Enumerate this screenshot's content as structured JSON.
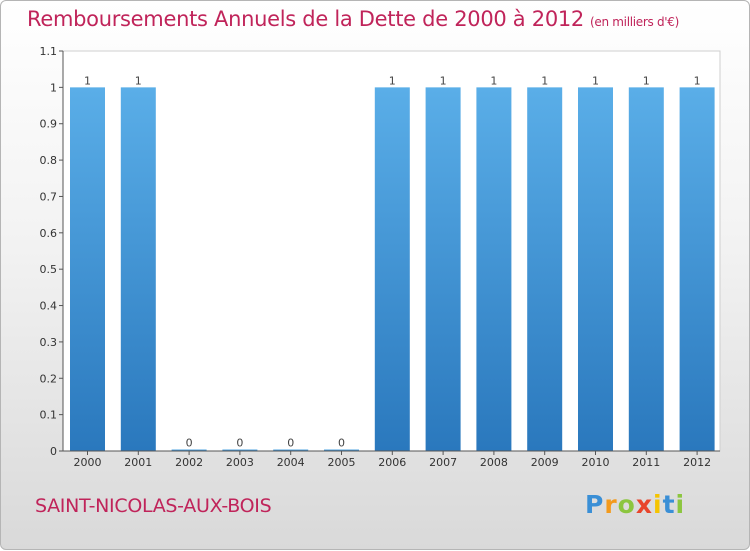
{
  "header": {
    "title": "Remboursements Annuels de la Dette de 2000 à 2012",
    "subtitle": "(en milliers d'€)"
  },
  "footer": {
    "town": "SAINT-NICOLAS-AUX-BOIS",
    "logo": "Proxiti"
  },
  "colors": {
    "title": "#c0245a",
    "bar_top": "#5aaee8",
    "bar_bottom": "#2a78bd",
    "plot_bg": "#ffffff"
  },
  "chart_data": {
    "type": "bar",
    "title": "Remboursements Annuels de la Dette de 2000 à 2012",
    "subtitle": "(en milliers d'€)",
    "categories": [
      "2000",
      "2001",
      "2002",
      "2003",
      "2004",
      "2005",
      "2006",
      "2007",
      "2008",
      "2009",
      "2010",
      "2011",
      "2012"
    ],
    "values": [
      1,
      1,
      0,
      0,
      0,
      0,
      1,
      1,
      1,
      1,
      1,
      1,
      1
    ],
    "data_labels": [
      "1",
      "1",
      "0",
      "0",
      "0",
      "0",
      "1",
      "1",
      "1",
      "1",
      "1",
      "1",
      "1"
    ],
    "yticks": [
      0,
      0.1,
      0.2,
      0.3,
      0.4,
      0.5,
      0.6,
      0.7,
      0.8,
      0.9,
      1,
      1.1
    ],
    "ytick_labels": [
      "0",
      "0.1",
      "0.2",
      "0.3",
      "0.4",
      "0.5",
      "0.6",
      "0.7",
      "0.8",
      "0.9",
      "1",
      "1.1"
    ],
    "ylim": [
      0,
      1.1
    ],
    "xlabel": "",
    "ylabel": "",
    "grid": false,
    "legend": "none"
  }
}
